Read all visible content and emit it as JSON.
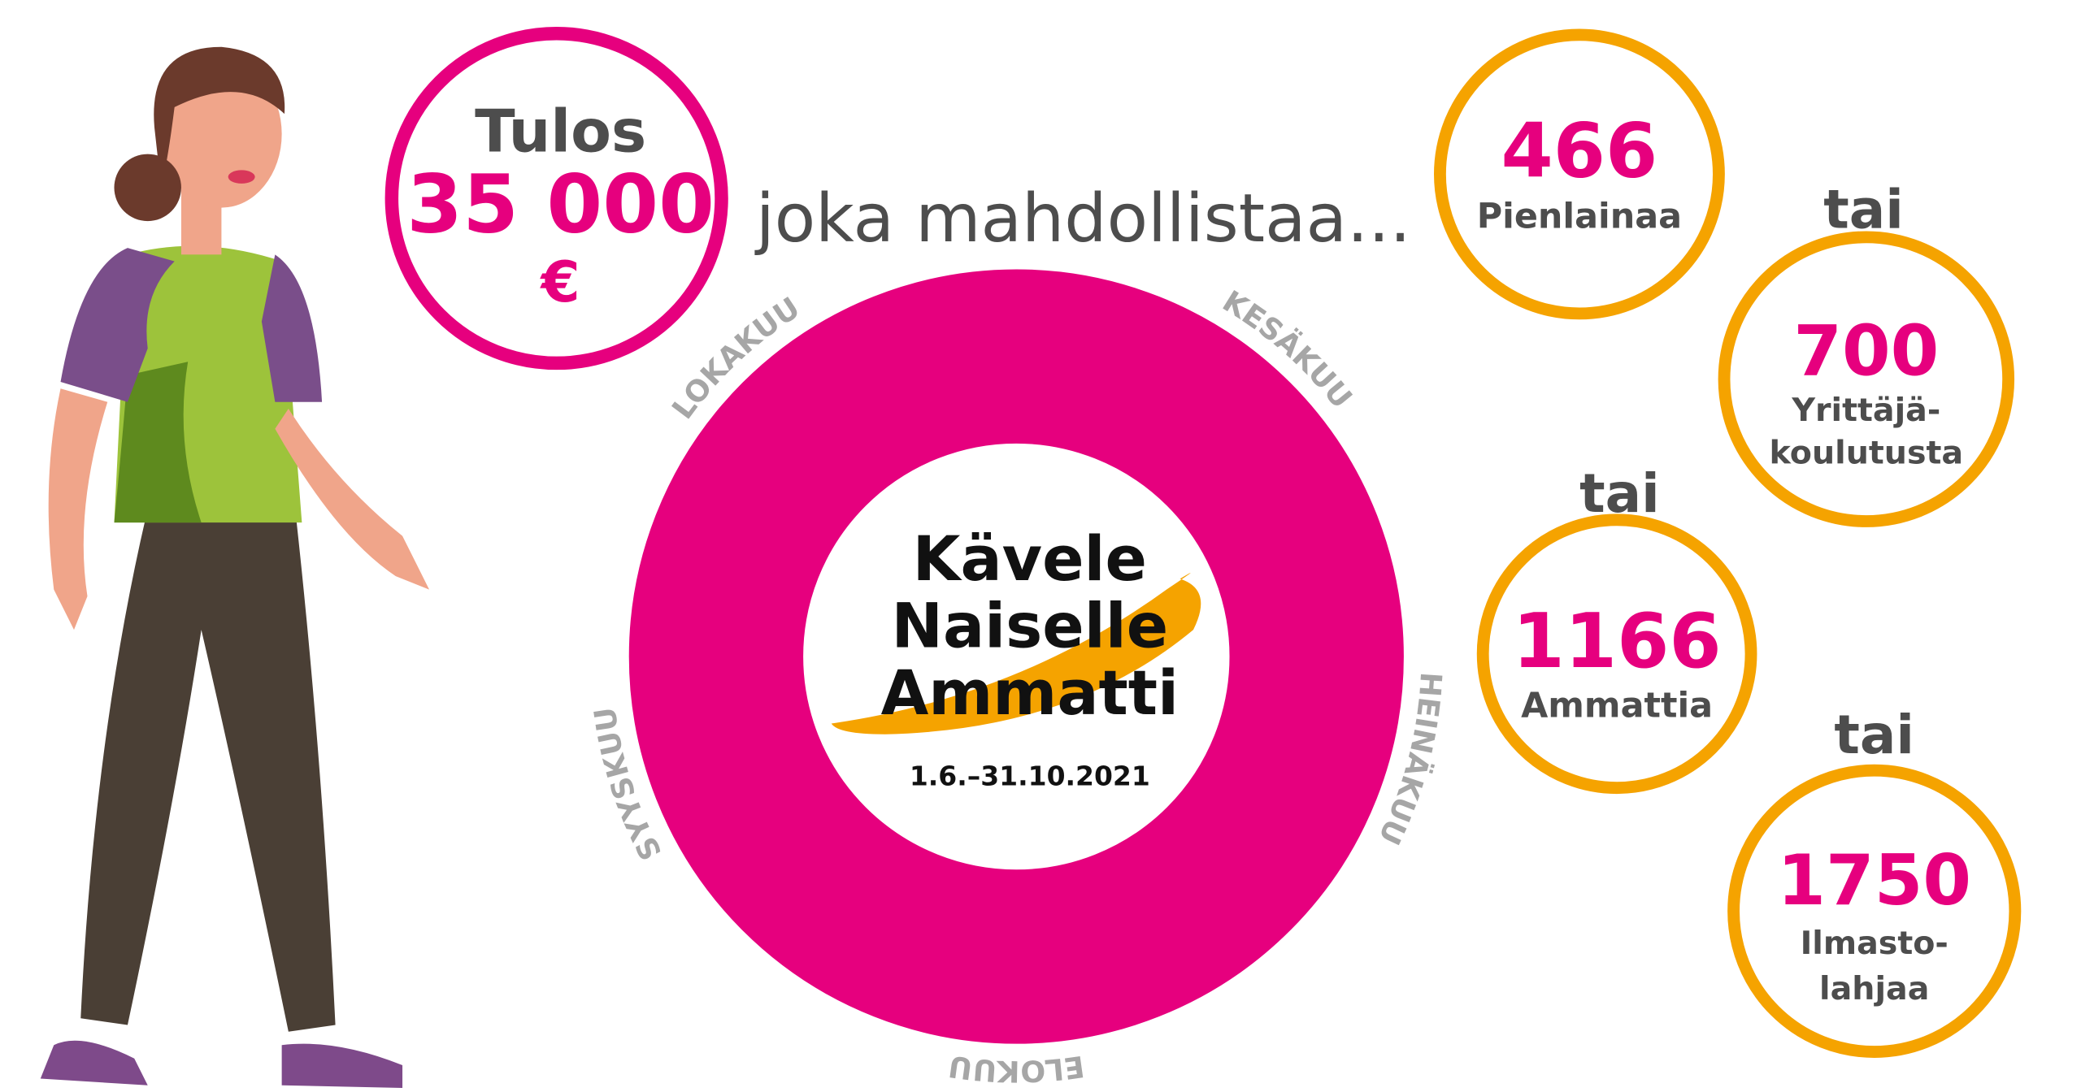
{
  "result": {
    "title": "Tulos",
    "amount": "35 000",
    "currency": "€"
  },
  "enables": "joka mahdollistaa...",
  "options": [
    {
      "number": "466",
      "lines": [
        "Pienlainaa"
      ]
    },
    {
      "separator": "tai",
      "number": "700",
      "lines": [
        "Yrittäjä-",
        "koulutusta"
      ]
    },
    {
      "separator": "tai",
      "number": "1166",
      "lines": [
        "Ammattia"
      ]
    },
    {
      "separator": "tai",
      "number": "1750",
      "lines": [
        "Ilmasto-",
        "lahjaa"
      ]
    }
  ],
  "logo": {
    "lines": [
      "Kävele",
      "Naiselle",
      "Ammatti"
    ],
    "dates": "1.6.–31.10.2021"
  },
  "months": [
    "KESÄKUU",
    "HEINÄKUU",
    "ELOKUU",
    "SYYSKUU",
    "LOKAKUU"
  ]
}
